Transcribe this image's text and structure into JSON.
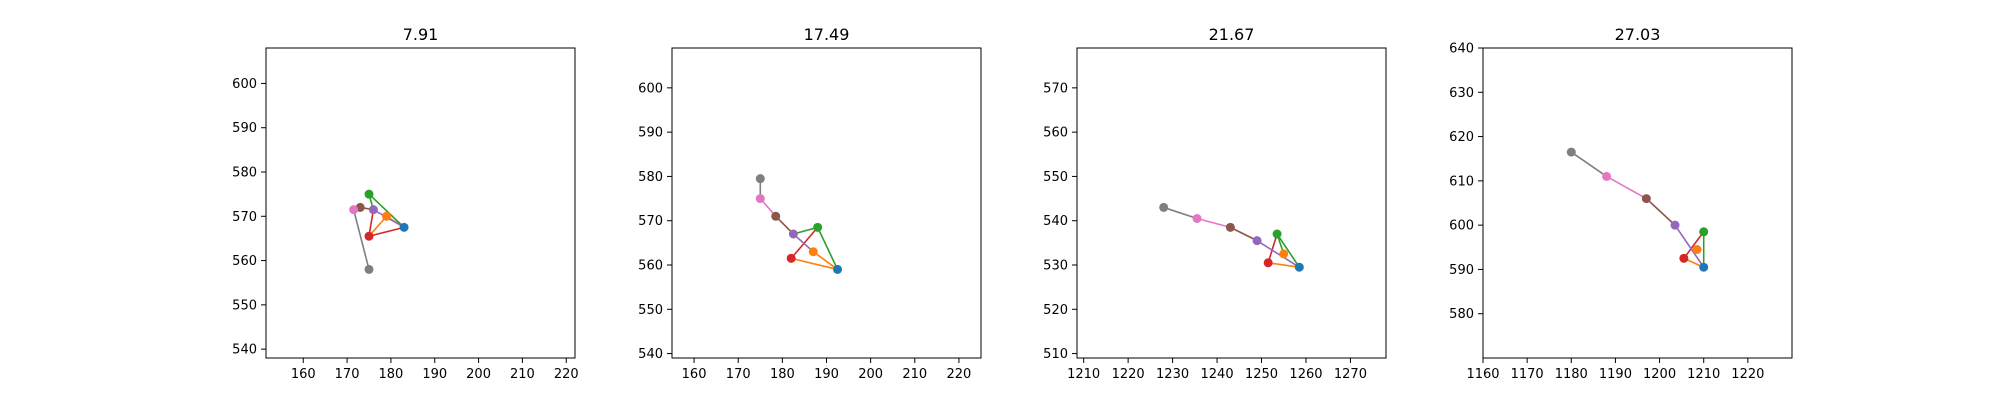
{
  "chart_data": [
    {
      "type": "line",
      "title": "7.91",
      "xlim": [
        151.5,
        222
      ],
      "ylim": [
        538,
        608
      ],
      "xticks": [
        160,
        170,
        180,
        190,
        200,
        210,
        220
      ],
      "yticks": [
        540,
        550,
        560,
        570,
        580,
        590,
        600
      ],
      "points": {
        "blue": [
          183,
          567.5
        ],
        "orange": [
          179,
          570
        ],
        "green": [
          175,
          575
        ],
        "red": [
          175,
          565.5
        ],
        "purple": [
          176,
          571.5
        ],
        "brown": [
          173,
          572
        ],
        "pink": [
          171.5,
          571.5
        ],
        "gray": [
          175,
          558
        ]
      },
      "segments": [
        {
          "from": "blue",
          "to": "orange",
          "color": "orange"
        },
        {
          "from": "orange",
          "to": "red",
          "color": "orange"
        },
        {
          "from": "blue",
          "to": "green",
          "color": "green"
        },
        {
          "from": "green",
          "to": "purple",
          "color": "green"
        },
        {
          "from": "purple",
          "to": "red",
          "color": "red"
        },
        {
          "from": "red",
          "to": "blue",
          "color": "red"
        },
        {
          "from": "purple",
          "to": "blue",
          "color": "purple"
        },
        {
          "from": "brown",
          "to": "purple",
          "color": "brown"
        },
        {
          "from": "pink",
          "to": "brown",
          "color": "pink"
        },
        {
          "from": "gray",
          "to": "pink",
          "color": "gray"
        }
      ]
    },
    {
      "type": "line",
      "title": "17.49",
      "xlim": [
        155,
        225
      ],
      "ylim": [
        539,
        609
      ],
      "xticks": [
        160,
        170,
        180,
        190,
        200,
        210,
        220
      ],
      "yticks": [
        540,
        550,
        560,
        570,
        580,
        590,
        600
      ],
      "points": {
        "blue": [
          192.5,
          559
        ],
        "orange": [
          187,
          563
        ],
        "green": [
          188,
          568.5
        ],
        "red": [
          182,
          561.5
        ],
        "purple": [
          182.5,
          567
        ],
        "brown": [
          178.5,
          571
        ],
        "pink": [
          175,
          575
        ],
        "gray": [
          175,
          579.5
        ]
      },
      "segments": [
        {
          "from": "blue",
          "to": "orange",
          "color": "orange"
        },
        {
          "from": "red",
          "to": "blue",
          "color": "orange"
        },
        {
          "from": "blue",
          "to": "green",
          "color": "green"
        },
        {
          "from": "green",
          "to": "purple",
          "color": "green"
        },
        {
          "from": "red",
          "to": "green",
          "color": "red"
        },
        {
          "from": "purple",
          "to": "orange",
          "color": "purple"
        },
        {
          "from": "brown",
          "to": "purple",
          "color": "brown"
        },
        {
          "from": "pink",
          "to": "brown",
          "color": "pink"
        },
        {
          "from": "gray",
          "to": "pink",
          "color": "gray"
        }
      ]
    },
    {
      "type": "line",
      "title": "21.67",
      "xlim": [
        1208.5,
        1278
      ],
      "ylim": [
        509,
        579
      ],
      "xticks": [
        1210,
        1220,
        1230,
        1240,
        1250,
        1260,
        1270
      ],
      "yticks": [
        510,
        520,
        530,
        540,
        550,
        560,
        570
      ],
      "points": {
        "blue": [
          1258.5,
          529.5
        ],
        "orange": [
          1255,
          532.5
        ],
        "green": [
          1253.5,
          537
        ],
        "red": [
          1251.5,
          530.5
        ],
        "purple": [
          1249,
          535.5
        ],
        "brown": [
          1243,
          538.5
        ],
        "pink": [
          1235.5,
          540.5
        ],
        "gray": [
          1228,
          543
        ]
      },
      "segments": [
        {
          "from": "red",
          "to": "blue",
          "color": "orange"
        },
        {
          "from": "blue",
          "to": "green",
          "color": "green"
        },
        {
          "from": "green",
          "to": "orange",
          "color": "green"
        },
        {
          "from": "red",
          "to": "green",
          "color": "red"
        },
        {
          "from": "purple",
          "to": "blue",
          "color": "purple"
        },
        {
          "from": "brown",
          "to": "purple",
          "color": "brown"
        },
        {
          "from": "pink",
          "to": "brown",
          "color": "pink"
        },
        {
          "from": "gray",
          "to": "pink",
          "color": "gray"
        }
      ]
    },
    {
      "type": "line",
      "title": "27.03",
      "xlim": [
        1160,
        1230
      ],
      "ylim": [
        570,
        640
      ],
      "xticks": [
        1160,
        1170,
        1180,
        1190,
        1200,
        1210,
        1220
      ],
      "yticks": [
        580,
        590,
        600,
        610,
        620,
        630,
        640
      ],
      "points": {
        "blue": [
          1210,
          590.5
        ],
        "orange": [
          1208.5,
          594.5
        ],
        "green": [
          1210,
          598.5
        ],
        "red": [
          1205.5,
          592.5
        ],
        "purple": [
          1203.5,
          600
        ],
        "brown": [
          1197,
          606
        ],
        "pink": [
          1188,
          611
        ],
        "gray": [
          1180,
          616.5
        ]
      },
      "segments": [
        {
          "from": "red",
          "to": "blue",
          "color": "orange"
        },
        {
          "from": "blue",
          "to": "green",
          "color": "green"
        },
        {
          "from": "red",
          "to": "green",
          "color": "red"
        },
        {
          "from": "purple",
          "to": "blue",
          "color": "purple"
        },
        {
          "from": "brown",
          "to": "purple",
          "color": "brown"
        },
        {
          "from": "pink",
          "to": "brown",
          "color": "pink"
        },
        {
          "from": "gray",
          "to": "pink",
          "color": "gray"
        }
      ]
    }
  ],
  "colors": {
    "blue": "#1f77b4",
    "orange": "#ff7f0e",
    "green": "#2ca02c",
    "red": "#d62728",
    "purple": "#9467bd",
    "brown": "#8c564b",
    "pink": "#e377c2",
    "gray": "#7f7f7f"
  }
}
